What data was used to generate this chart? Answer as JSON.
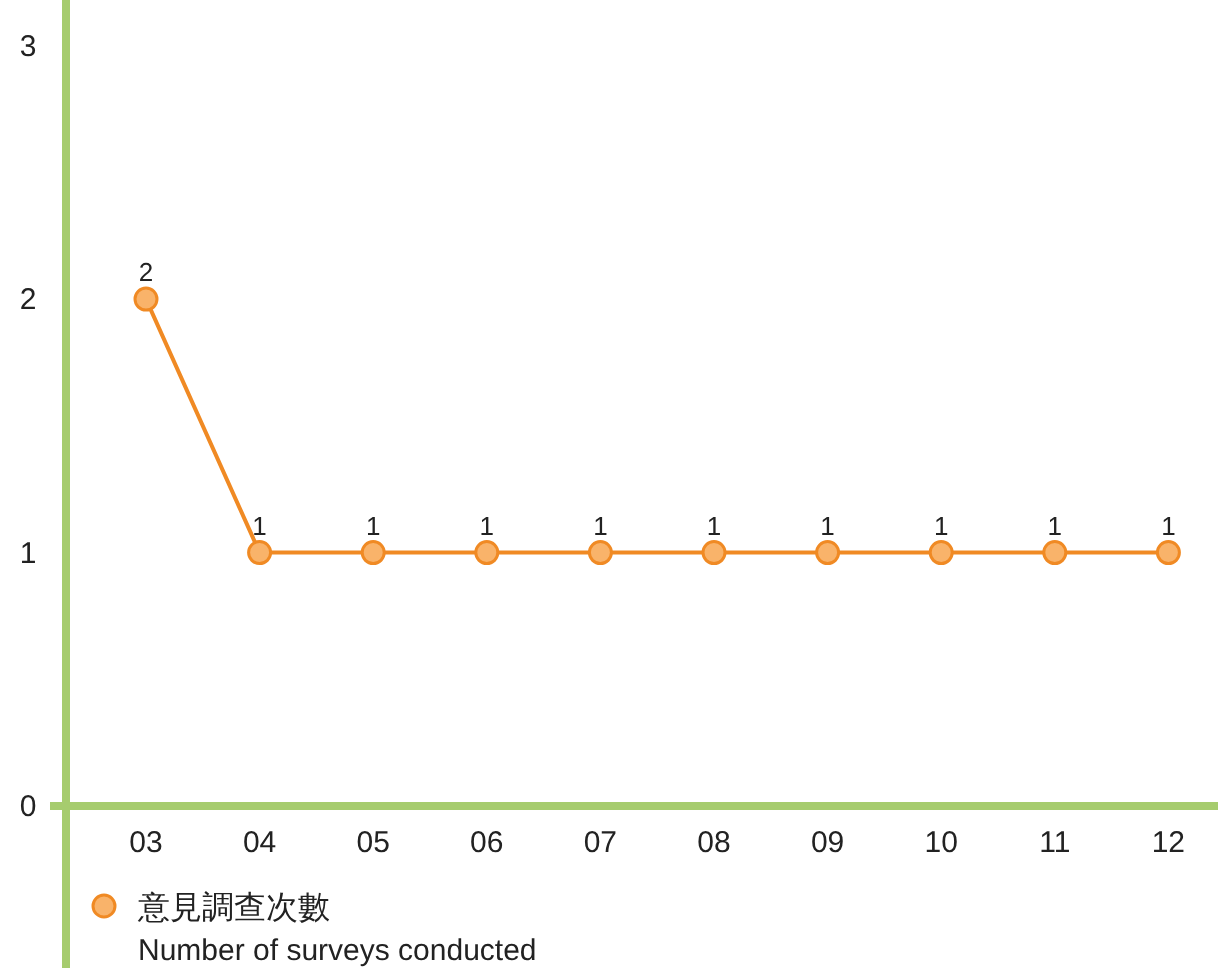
{
  "chart_data": {
    "type": "line",
    "categories": [
      "03",
      "04",
      "05",
      "06",
      "07",
      "08",
      "09",
      "10",
      "11",
      "12"
    ],
    "series": [
      {
        "name": "意見調查次數",
        "color": "#f08a24",
        "values": [
          2,
          1,
          1,
          1,
          1,
          1,
          1,
          1,
          1,
          1
        ]
      }
    ],
    "ylim": [
      0,
      3.18
    ],
    "yticks": [
      0,
      1,
      2,
      3
    ],
    "grid": false,
    "legend": "bottom left",
    "marker": "circle",
    "line_style": "solid",
    "data_labels": true,
    "annotations": [
      "Number of surveys conducted"
    ]
  }
}
